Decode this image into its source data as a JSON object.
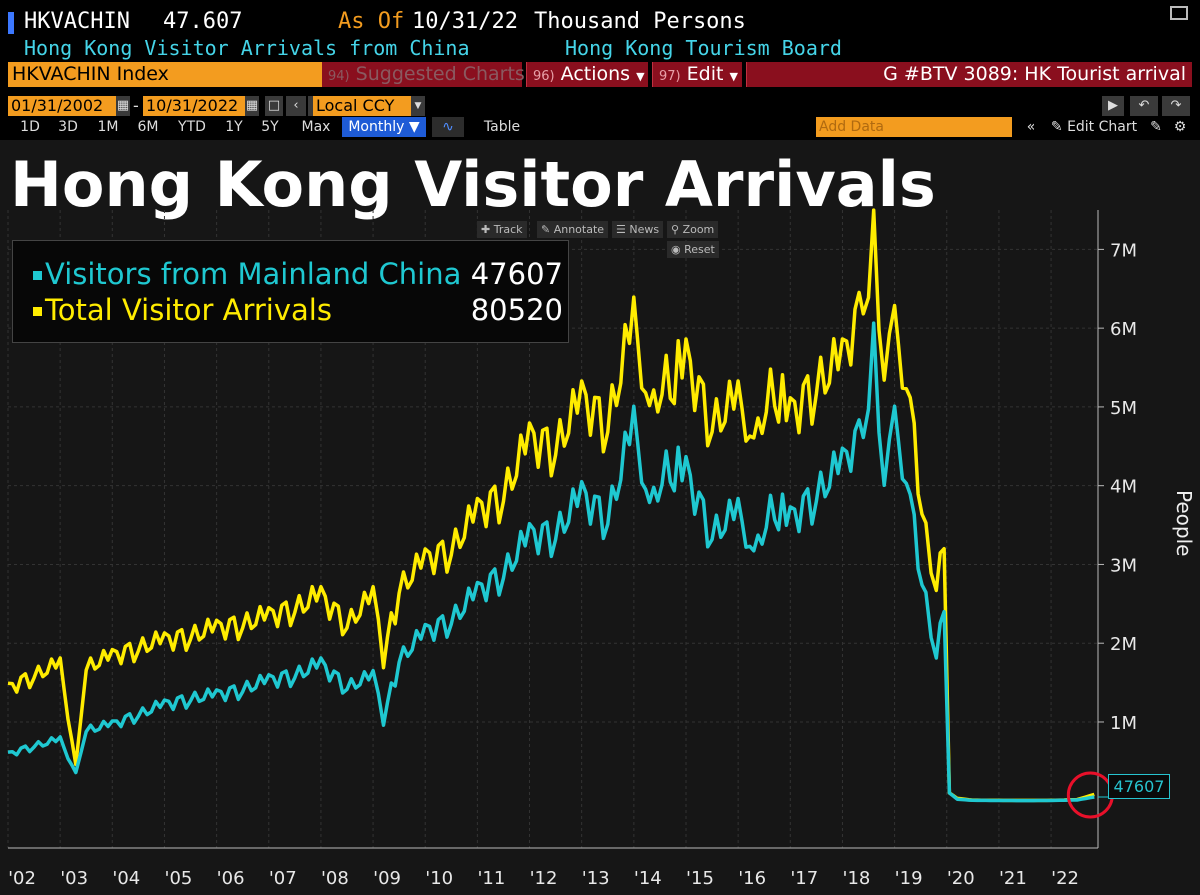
{
  "header": {
    "ticker": "HKVACHIN",
    "last_value": "47.607",
    "as_of_label": "As Of",
    "as_of_date": "10/31/22",
    "units": "Thousand Persons",
    "description": "Hong Kong Visitor Arrivals from China",
    "source": "Hong Kong Tourism Board"
  },
  "command_bar": {
    "index_field": "HKVACHIN Index",
    "suggested_num": "94)",
    "suggested_label": "Suggested Charts",
    "actions_num": "96)",
    "actions_label": "Actions",
    "edit_num": "97)",
    "edit_label": "Edit",
    "graph_label": "G #BTV 3089: HK Tourist arrival"
  },
  "date_bar": {
    "start_date": "01/31/2002",
    "end_date": "10/31/2022",
    "currency": "Local CCY"
  },
  "range_bar": {
    "ranges": [
      "1D",
      "3D",
      "1M",
      "6M",
      "YTD",
      "1Y",
      "5Y",
      "Max"
    ],
    "frequency": "Monthly",
    "table_label": "Table",
    "add_data_placeholder": "Add Data",
    "edit_chart_label": "Edit Chart"
  },
  "chart_tools": {
    "track": "Track",
    "annotate": "Annotate",
    "news": "News",
    "zoom": "Zoom",
    "reset": "Reset"
  },
  "colors": {
    "mainland": "#1fc8d1",
    "total": "#ffec00",
    "accent_orange": "#f39c1f",
    "menu_red": "#8a0f1e",
    "highlight_circle": "#e8102a"
  },
  "chart_data": {
    "type": "line",
    "title": "Hong Kong Visitor Arrivals",
    "ylabel": "People",
    "ylim": [
      -600000,
      7500000
    ],
    "yticks": [
      1000000,
      2000000,
      3000000,
      4000000,
      5000000,
      6000000,
      7000000
    ],
    "ytick_labels": [
      "1M",
      "2M",
      "3M",
      "4M",
      "5M",
      "6M",
      "7M"
    ],
    "xlim": [
      2002.0,
      2022.9
    ],
    "xtick_labels": [
      "'02",
      "'03",
      "'04",
      "'05",
      "'06",
      "'07",
      "'08",
      "'09",
      "'10",
      "'11",
      "'12",
      "'13",
      "'14",
      "'15",
      "'16",
      "'17",
      "'18",
      "'19",
      "'20",
      "'21",
      "'22"
    ],
    "legend": {
      "placement": "top-left",
      "items": [
        {
          "name": "Visitors from Mainland China",
          "value": "47607"
        },
        {
          "name": "Total Visitor Arrivals",
          "value": "80520"
        }
      ]
    },
    "last_value_label": "47607",
    "series": [
      {
        "name": "Visitors from Mainland China",
        "x": [
          2002.0,
          2002.5,
          2003.0,
          2003.3,
          2003.5,
          2004.0,
          2004.5,
          2005.0,
          2005.5,
          2006.0,
          2006.5,
          2007.0,
          2007.5,
          2008.0,
          2008.5,
          2009.0,
          2009.2,
          2009.5,
          2010.0,
          2010.5,
          2011.0,
          2011.5,
          2012.0,
          2012.5,
          2013.0,
          2013.5,
          2014.0,
          2014.3,
          2014.7,
          2015.0,
          2015.5,
          2016.0,
          2016.3,
          2016.7,
          2017.0,
          2017.5,
          2018.0,
          2018.4,
          2018.6,
          2018.8,
          2019.0,
          2019.3,
          2019.6,
          2019.8,
          2019.95,
          2020.05,
          2020.2,
          2020.5,
          2021.0,
          2021.5,
          2022.0,
          2022.5,
          2022.83
        ],
        "values": [
          580000,
          700000,
          760000,
          350000,
          900000,
          950000,
          1100000,
          1200000,
          1300000,
          1320000,
          1420000,
          1500000,
          1600000,
          1700000,
          1450000,
          1550000,
          1050000,
          1800000,
          2100000,
          2300000,
          2600000,
          2900000,
          3300000,
          3400000,
          3800000,
          3600000,
          4700000,
          3700000,
          4200000,
          4100000,
          3400000,
          3600000,
          3100000,
          3700000,
          3500000,
          3900000,
          4200000,
          4700000,
          5500000,
          4200000,
          4700000,
          3800000,
          2400000,
          1900000,
          2400000,
          100000,
          20000,
          5000,
          3000,
          2000,
          3000,
          10000,
          47607
        ]
      },
      {
        "name": "Total Visitor Arrivals",
        "x": [
          2002.0,
          2002.5,
          2003.0,
          2003.3,
          2003.5,
          2004.0,
          2004.5,
          2005.0,
          2005.5,
          2006.0,
          2006.5,
          2007.0,
          2007.5,
          2008.0,
          2008.5,
          2009.0,
          2009.2,
          2009.5,
          2010.0,
          2010.5,
          2011.0,
          2011.5,
          2012.0,
          2012.5,
          2013.0,
          2013.5,
          2014.0,
          2014.3,
          2014.7,
          2015.0,
          2015.5,
          2016.0,
          2016.3,
          2016.7,
          2017.0,
          2017.5,
          2018.0,
          2018.4,
          2018.6,
          2018.8,
          2019.0,
          2019.3,
          2019.6,
          2019.8,
          2019.95,
          2020.05,
          2020.2,
          2020.5,
          2021.0,
          2021.5,
          2022.0,
          2022.5,
          2022.83
        ],
        "values": [
          1400000,
          1600000,
          1700000,
          450000,
          1700000,
          1800000,
          1950000,
          2000000,
          2100000,
          2150000,
          2250000,
          2300000,
          2450000,
          2550000,
          2250000,
          2550000,
          1850000,
          2700000,
          3000000,
          3200000,
          3600000,
          3900000,
          4500000,
          4500000,
          5000000,
          4800000,
          6000000,
          4900000,
          5300000,
          5500000,
          4800000,
          5000000,
          4500000,
          5200000,
          4800000,
          5300000,
          5500000,
          6300000,
          6800000,
          5600000,
          5900000,
          5000000,
          3200000,
          2800000,
          3200000,
          100000,
          30000,
          8000,
          5000,
          4000,
          5000,
          15000,
          80520
        ]
      }
    ]
  }
}
